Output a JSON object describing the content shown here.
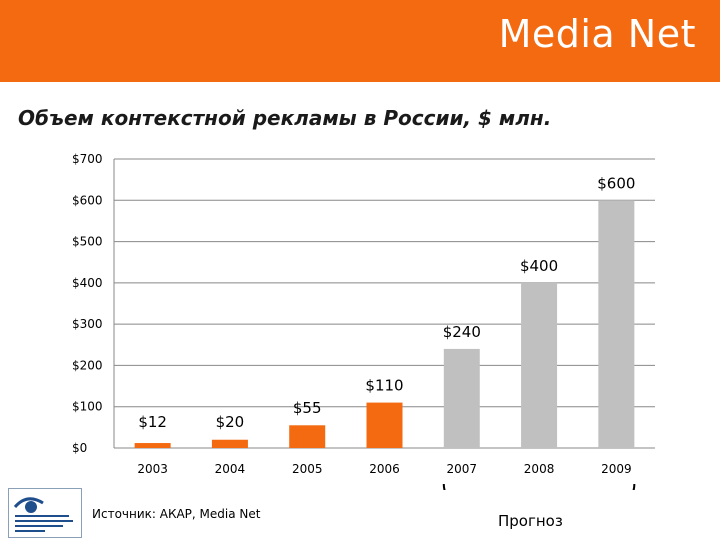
{
  "brand": "Media Net",
  "slide_title": "Объем контекстной рекламы в России, $ млн.",
  "source_note": "Источник: АКАР, Media Net",
  "forecast_label": "Прогноз",
  "colors": {
    "header": "#f36a10",
    "actual_bar": "#f36a10",
    "forecast_bar": "#c0c0c0",
    "grid": "#888888"
  },
  "chart_data": {
    "type": "bar",
    "title": "Объем контекстной рекламы в России, $ млн.",
    "xlabel": "",
    "ylabel": "",
    "ylim": [
      0,
      700
    ],
    "y_ticks": [
      0,
      100,
      200,
      300,
      400,
      500,
      600,
      700
    ],
    "y_tick_labels": [
      "$0",
      "$100",
      "$200",
      "$300",
      "$400",
      "$500",
      "$600",
      "$700"
    ],
    "categories": [
      "2003",
      "2004",
      "2005",
      "2006",
      "2007",
      "2008",
      "2009"
    ],
    "values": [
      12,
      20,
      55,
      110,
      240,
      400,
      600
    ],
    "value_labels": [
      "$12",
      "$20",
      "$55",
      "$110",
      "$240",
      "$400",
      "$600"
    ],
    "is_forecast": [
      false,
      false,
      false,
      false,
      true,
      true,
      true
    ],
    "grid": true
  }
}
